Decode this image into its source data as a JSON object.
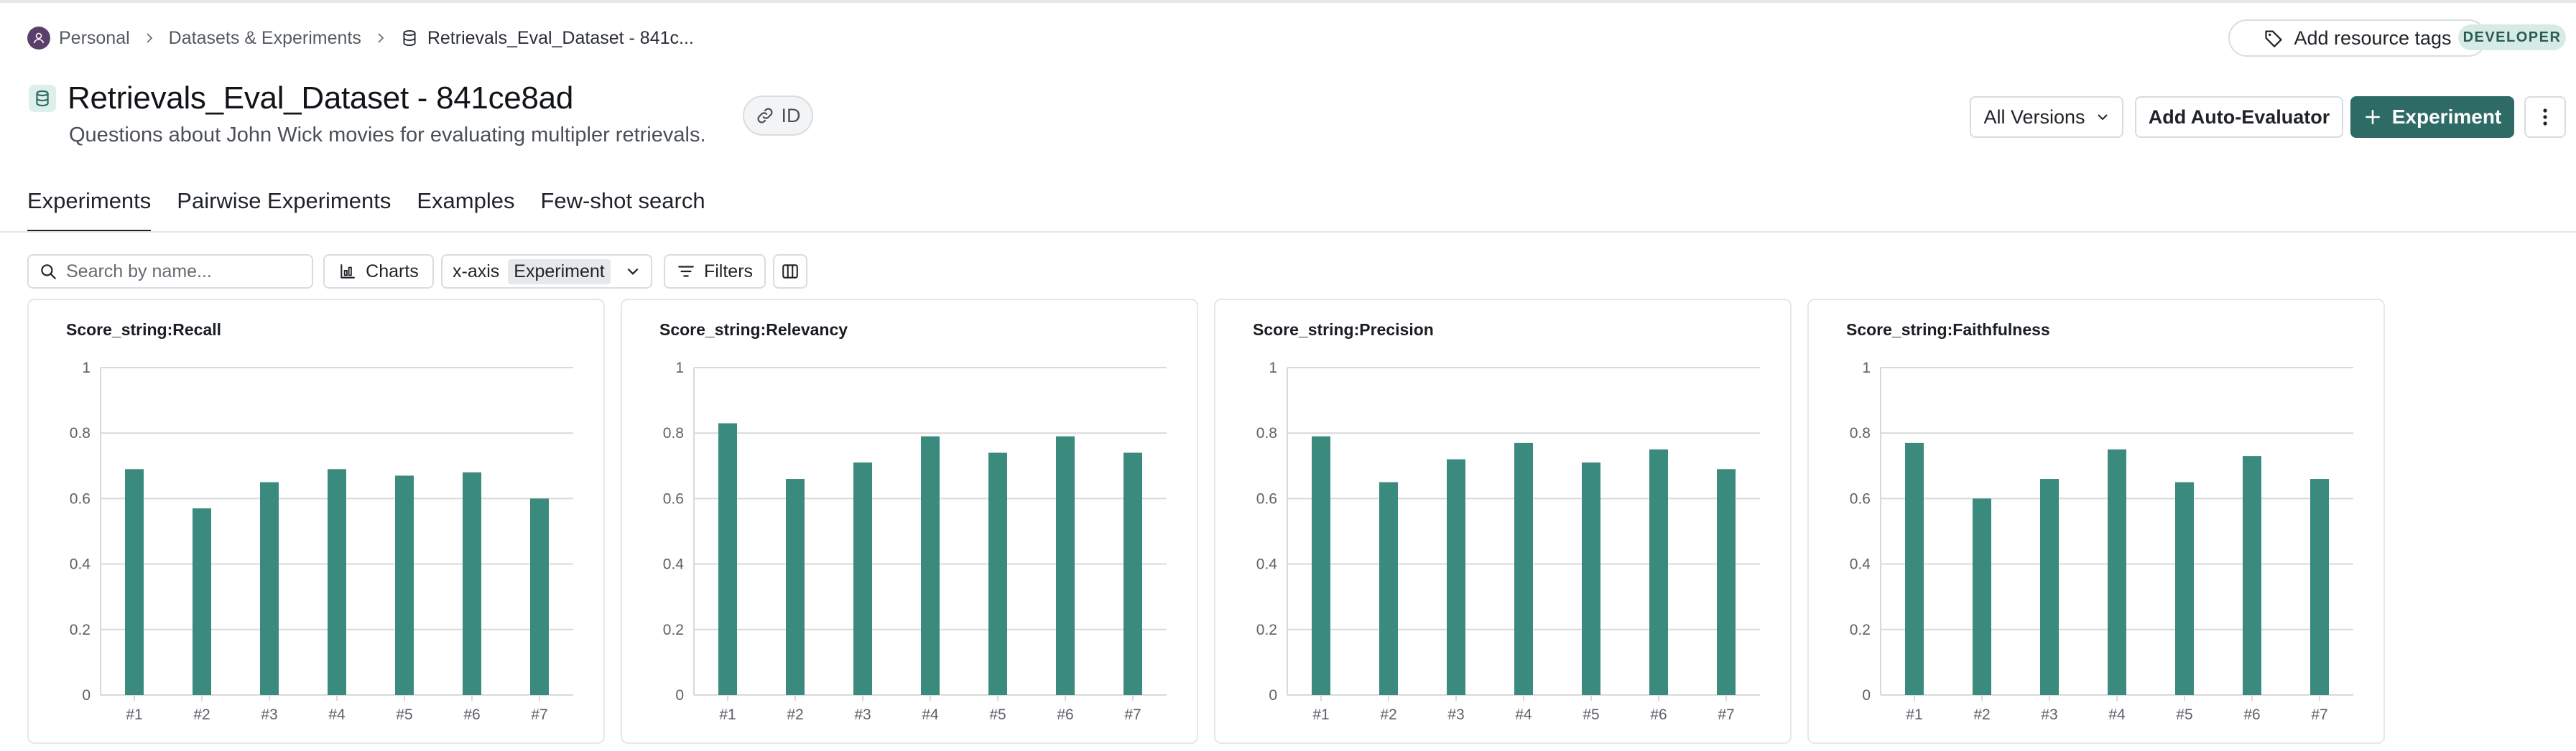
{
  "breadcrumb": {
    "items": [
      "Personal",
      "Datasets & Experiments",
      "Retrievals_Eval_Dataset - 841c..."
    ]
  },
  "header": {
    "add_tags_label": "Add resource tags",
    "badge": "DEVELOPER",
    "title": "Retrievals_Eval_Dataset - 841ce8ad",
    "description": "Questions about John Wick movies for evaluating multipler retrievals.",
    "id_label": "ID",
    "versions_label": "All Versions",
    "auto_evaluator_label": "Add Auto-Evaluator",
    "experiment_label": "Experiment"
  },
  "tabs": [
    {
      "label": "Experiments",
      "active": true
    },
    {
      "label": "Pairwise Experiments",
      "active": false
    },
    {
      "label": "Examples",
      "active": false
    },
    {
      "label": "Few-shot search",
      "active": false
    }
  ],
  "toolbar": {
    "search_placeholder": "Search by name...",
    "charts_label": "Charts",
    "xaxis_label": "x-axis",
    "xaxis_value": "Experiment",
    "filters_label": "Filters"
  },
  "colors": {
    "bar": "#3a8a7e",
    "primary_button": "#2f6b66",
    "badge_bg": "#d6ebe6",
    "badge_text": "#2a5a52",
    "grid": "#d9d9d9"
  },
  "icons": {
    "avatar": "user-icon",
    "breadcrumb_sep": "chevron-right-icon",
    "dataset": "database-icon",
    "tag": "tag-icon",
    "link": "link-icon",
    "versions": "chevron-down-icon",
    "experiment": "plus-icon",
    "more": "more-vertical-icon",
    "search": "search-icon",
    "charts": "chart-icon",
    "filters": "filter-icon",
    "columns": "columns-icon"
  },
  "chart_data": [
    {
      "type": "bar",
      "title": "Score_string:Recall",
      "categories": [
        "#1",
        "#2",
        "#3",
        "#4",
        "#5",
        "#6",
        "#7"
      ],
      "values": [
        0.69,
        0.57,
        0.65,
        0.69,
        0.67,
        0.68,
        0.6
      ],
      "ylim": [
        0,
        1
      ],
      "yticks": [
        "0",
        "0.2",
        "0.4",
        "0.6",
        "0.8",
        "1"
      ],
      "grid": true
    },
    {
      "type": "bar",
      "title": "Score_string:Relevancy",
      "categories": [
        "#1",
        "#2",
        "#3",
        "#4",
        "#5",
        "#6",
        "#7"
      ],
      "values": [
        0.83,
        0.66,
        0.71,
        0.79,
        0.74,
        0.79,
        0.74
      ],
      "ylim": [
        0,
        1
      ],
      "yticks": [
        "0",
        "0.2",
        "0.4",
        "0.6",
        "0.8",
        "1"
      ],
      "grid": true
    },
    {
      "type": "bar",
      "title": "Score_string:Precision",
      "categories": [
        "#1",
        "#2",
        "#3",
        "#4",
        "#5",
        "#6",
        "#7"
      ],
      "values": [
        0.79,
        0.65,
        0.72,
        0.77,
        0.71,
        0.75,
        0.69
      ],
      "ylim": [
        0,
        1
      ],
      "yticks": [
        "0",
        "0.2",
        "0.4",
        "0.6",
        "0.8",
        "1"
      ],
      "grid": true
    },
    {
      "type": "bar",
      "title": "Score_string:Faithfulness",
      "categories": [
        "#1",
        "#2",
        "#3",
        "#4",
        "#5",
        "#6",
        "#7"
      ],
      "values": [
        0.77,
        0.6,
        0.66,
        0.75,
        0.65,
        0.73,
        0.66
      ],
      "ylim": [
        0,
        1
      ],
      "yticks": [
        "0",
        "0.2",
        "0.4",
        "0.6",
        "0.8",
        "1"
      ],
      "grid": true
    }
  ]
}
